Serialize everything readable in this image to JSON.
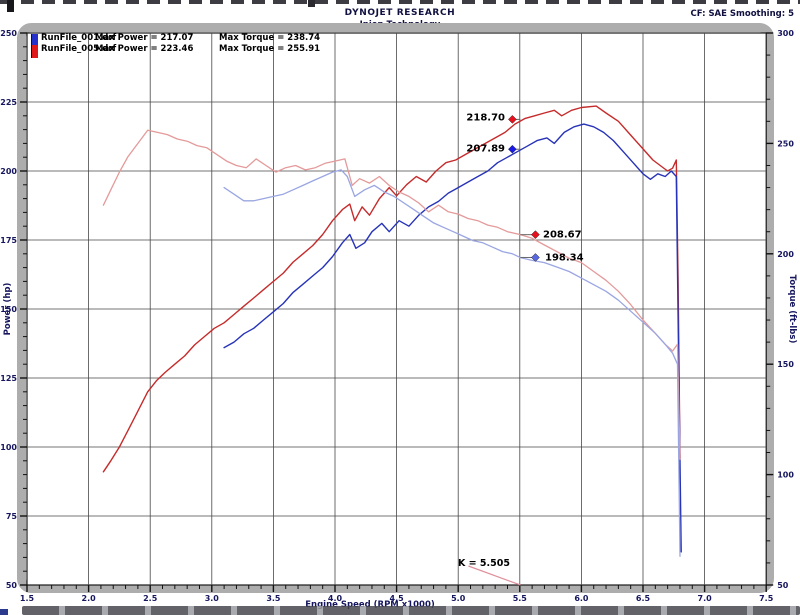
{
  "header": {
    "title": "DYNOJET RESEARCH",
    "subtitle": "Injen Technology",
    "correction": "CF: SAE  Smoothing: 5"
  },
  "legend": {
    "rows": [
      {
        "file": "RunFile_001.drf",
        "power_label": "Max Power = 217.07",
        "torque_label": "Max Torque = 238.74",
        "color": "#2430c8"
      },
      {
        "file": "RunFile_005.drf",
        "power_label": "Max Power = 223.46",
        "torque_label": "Max Torque = 255.91",
        "color": "#e01818"
      }
    ]
  },
  "cursor": {
    "label": "K = 5.505",
    "rpm": 5.505
  },
  "callouts": [
    {
      "label": "218.70",
      "axis": "power",
      "rpm": 5.505,
      "value": 218.7,
      "side": "left",
      "color": "#e8101c"
    },
    {
      "label": "207.89",
      "axis": "power",
      "rpm": 5.505,
      "value": 207.89,
      "side": "left",
      "color": "#1818e8"
    },
    {
      "label": "208.67",
      "axis": "torque",
      "rpm": 5.505,
      "value": 208.67,
      "side": "right",
      "color": "#e8101c"
    },
    {
      "label": "198.34",
      "axis": "torque",
      "rpm": 5.505,
      "value": 198.34,
      "side": "right",
      "color": "#5868e0"
    }
  ],
  "chart_data": {
    "type": "line",
    "xlabel": "Engine Speed (RPM x1000)",
    "ylabel_left": "Power (hp)",
    "ylabel_right": "Torque (ft-lbs)",
    "x_range": [
      1.5,
      7.5
    ],
    "power_range": [
      50,
      250
    ],
    "torque_range": [
      50,
      300
    ],
    "x_ticks": [
      1.5,
      2.0,
      2.5,
      3.0,
      3.5,
      4.0,
      4.5,
      5.0,
      5.5,
      6.0,
      6.5,
      7.0,
      7.5
    ],
    "power_ticks": [
      250,
      225,
      200,
      175,
      150,
      125,
      100,
      75,
      50
    ],
    "torque_ticks": [
      300,
      250,
      200,
      150,
      100,
      50
    ],
    "grid": true,
    "series": [
      {
        "name": "RunFile_005 Power",
        "axis": "power",
        "color": "#c62b2b",
        "width": 1.4,
        "points": [
          [
            2.12,
            91
          ],
          [
            2.18,
            95
          ],
          [
            2.25,
            100
          ],
          [
            2.32,
            106
          ],
          [
            2.4,
            113
          ],
          [
            2.48,
            120
          ],
          [
            2.55,
            124
          ],
          [
            2.62,
            127
          ],
          [
            2.7,
            130
          ],
          [
            2.78,
            133
          ],
          [
            2.86,
            137
          ],
          [
            2.94,
            140
          ],
          [
            3.02,
            143
          ],
          [
            3.1,
            145
          ],
          [
            3.18,
            148
          ],
          [
            3.26,
            151
          ],
          [
            3.34,
            154
          ],
          [
            3.42,
            157
          ],
          [
            3.5,
            160
          ],
          [
            3.58,
            163
          ],
          [
            3.66,
            167
          ],
          [
            3.74,
            170
          ],
          [
            3.82,
            173
          ],
          [
            3.9,
            177
          ],
          [
            3.98,
            182
          ],
          [
            4.06,
            186
          ],
          [
            4.12,
            188
          ],
          [
            4.16,
            182
          ],
          [
            4.22,
            187
          ],
          [
            4.28,
            184
          ],
          [
            4.36,
            190
          ],
          [
            4.44,
            194
          ],
          [
            4.5,
            191
          ],
          [
            4.58,
            195
          ],
          [
            4.66,
            198
          ],
          [
            4.74,
            196
          ],
          [
            4.82,
            200
          ],
          [
            4.9,
            203
          ],
          [
            4.98,
            204
          ],
          [
            5.06,
            206
          ],
          [
            5.14,
            208
          ],
          [
            5.22,
            210
          ],
          [
            5.3,
            212
          ],
          [
            5.38,
            214
          ],
          [
            5.46,
            217
          ],
          [
            5.54,
            219
          ],
          [
            5.62,
            220
          ],
          [
            5.7,
            221
          ],
          [
            5.78,
            222
          ],
          [
            5.84,
            220
          ],
          [
            5.92,
            222
          ],
          [
            6.0,
            223
          ],
          [
            6.12,
            223.5
          ],
          [
            6.2,
            221
          ],
          [
            6.3,
            218
          ],
          [
            6.4,
            213
          ],
          [
            6.5,
            208
          ],
          [
            6.58,
            204
          ],
          [
            6.64,
            202
          ],
          [
            6.7,
            200
          ],
          [
            6.74,
            201
          ],
          [
            6.77,
            204
          ],
          [
            6.785,
            160
          ],
          [
            6.8,
            96
          ]
        ]
      },
      {
        "name": "RunFile_001 Power",
        "axis": "power",
        "color": "#2733b8",
        "width": 1.4,
        "points": [
          [
            3.1,
            136
          ],
          [
            3.18,
            138
          ],
          [
            3.26,
            141
          ],
          [
            3.34,
            143
          ],
          [
            3.42,
            146
          ],
          [
            3.5,
            149
          ],
          [
            3.58,
            152
          ],
          [
            3.66,
            156
          ],
          [
            3.74,
            159
          ],
          [
            3.82,
            162
          ],
          [
            3.9,
            165
          ],
          [
            3.98,
            169
          ],
          [
            4.06,
            174
          ],
          [
            4.12,
            177
          ],
          [
            4.17,
            172
          ],
          [
            4.24,
            174
          ],
          [
            4.3,
            178
          ],
          [
            4.38,
            181
          ],
          [
            4.44,
            178
          ],
          [
            4.52,
            182
          ],
          [
            4.6,
            180
          ],
          [
            4.68,
            184
          ],
          [
            4.76,
            187
          ],
          [
            4.84,
            189
          ],
          [
            4.92,
            192
          ],
          [
            5.0,
            194
          ],
          [
            5.08,
            196
          ],
          [
            5.16,
            198
          ],
          [
            5.24,
            200
          ],
          [
            5.32,
            203
          ],
          [
            5.4,
            205
          ],
          [
            5.48,
            207
          ],
          [
            5.56,
            209
          ],
          [
            5.64,
            211
          ],
          [
            5.72,
            212
          ],
          [
            5.78,
            210
          ],
          [
            5.86,
            214
          ],
          [
            5.94,
            216
          ],
          [
            6.02,
            217
          ],
          [
            6.1,
            216
          ],
          [
            6.18,
            214
          ],
          [
            6.26,
            211
          ],
          [
            6.34,
            207
          ],
          [
            6.42,
            203
          ],
          [
            6.5,
            199
          ],
          [
            6.56,
            197
          ],
          [
            6.62,
            199
          ],
          [
            6.68,
            198
          ],
          [
            6.73,
            200
          ],
          [
            6.77,
            198
          ],
          [
            6.79,
            130
          ],
          [
            6.81,
            62
          ]
        ]
      },
      {
        "name": "RunFile_005 Torque",
        "axis": "torque",
        "color": "#e49a9a",
        "width": 1.3,
        "points": [
          [
            2.12,
            222
          ],
          [
            2.18,
            229
          ],
          [
            2.25,
            237
          ],
          [
            2.32,
            244
          ],
          [
            2.4,
            250
          ],
          [
            2.48,
            256
          ],
          [
            2.56,
            255
          ],
          [
            2.64,
            254
          ],
          [
            2.72,
            252
          ],
          [
            2.8,
            251
          ],
          [
            2.88,
            249
          ],
          [
            2.96,
            248
          ],
          [
            3.04,
            245
          ],
          [
            3.12,
            242
          ],
          [
            3.2,
            240
          ],
          [
            3.28,
            239
          ],
          [
            3.36,
            243
          ],
          [
            3.44,
            240
          ],
          [
            3.52,
            237
          ],
          [
            3.6,
            239
          ],
          [
            3.68,
            240
          ],
          [
            3.76,
            238
          ],
          [
            3.84,
            239
          ],
          [
            3.92,
            241
          ],
          [
            4.0,
            242
          ],
          [
            4.08,
            243
          ],
          [
            4.14,
            231
          ],
          [
            4.2,
            234
          ],
          [
            4.28,
            232
          ],
          [
            4.36,
            235
          ],
          [
            4.44,
            231
          ],
          [
            4.52,
            228
          ],
          [
            4.6,
            226
          ],
          [
            4.68,
            223
          ],
          [
            4.76,
            219
          ],
          [
            4.84,
            222
          ],
          [
            4.92,
            219
          ],
          [
            5.0,
            218
          ],
          [
            5.08,
            216
          ],
          [
            5.16,
            215
          ],
          [
            5.24,
            213
          ],
          [
            5.32,
            212
          ],
          [
            5.4,
            210
          ],
          [
            5.505,
            208.7
          ],
          [
            5.6,
            207
          ],
          [
            5.7,
            204
          ],
          [
            5.8,
            201
          ],
          [
            5.9,
            198
          ],
          [
            6.0,
            196
          ],
          [
            6.1,
            192
          ],
          [
            6.2,
            188
          ],
          [
            6.3,
            183
          ],
          [
            6.4,
            177
          ],
          [
            6.5,
            170
          ],
          [
            6.6,
            164
          ],
          [
            6.68,
            159
          ],
          [
            6.74,
            156
          ],
          [
            6.78,
            159
          ],
          [
            6.8,
            107
          ]
        ]
      },
      {
        "name": "RunFile_001 Torque",
        "axis": "torque",
        "color": "#9aa6e2",
        "width": 1.3,
        "points": [
          [
            3.1,
            230
          ],
          [
            3.18,
            227
          ],
          [
            3.26,
            224
          ],
          [
            3.34,
            224
          ],
          [
            3.42,
            225
          ],
          [
            3.5,
            226
          ],
          [
            3.58,
            227
          ],
          [
            3.66,
            229
          ],
          [
            3.74,
            231
          ],
          [
            3.82,
            233
          ],
          [
            3.9,
            235
          ],
          [
            3.98,
            237
          ],
          [
            4.05,
            238
          ],
          [
            4.1,
            235
          ],
          [
            4.16,
            226
          ],
          [
            4.24,
            229
          ],
          [
            4.32,
            231
          ],
          [
            4.4,
            228
          ],
          [
            4.48,
            226
          ],
          [
            4.56,
            223
          ],
          [
            4.64,
            220
          ],
          [
            4.72,
            217
          ],
          [
            4.8,
            214
          ],
          [
            4.88,
            212
          ],
          [
            4.96,
            210
          ],
          [
            5.04,
            208
          ],
          [
            5.12,
            206
          ],
          [
            5.2,
            205
          ],
          [
            5.28,
            203
          ],
          [
            5.36,
            201
          ],
          [
            5.44,
            200
          ],
          [
            5.505,
            198.3
          ],
          [
            5.6,
            197
          ],
          [
            5.7,
            196
          ],
          [
            5.8,
            194
          ],
          [
            5.9,
            192
          ],
          [
            6.0,
            189
          ],
          [
            6.1,
            186
          ],
          [
            6.2,
            183
          ],
          [
            6.3,
            179
          ],
          [
            6.4,
            174
          ],
          [
            6.5,
            169
          ],
          [
            6.6,
            164
          ],
          [
            6.68,
            159
          ],
          [
            6.74,
            155
          ],
          [
            6.78,
            150
          ],
          [
            6.8,
            63
          ]
        ]
      }
    ]
  }
}
